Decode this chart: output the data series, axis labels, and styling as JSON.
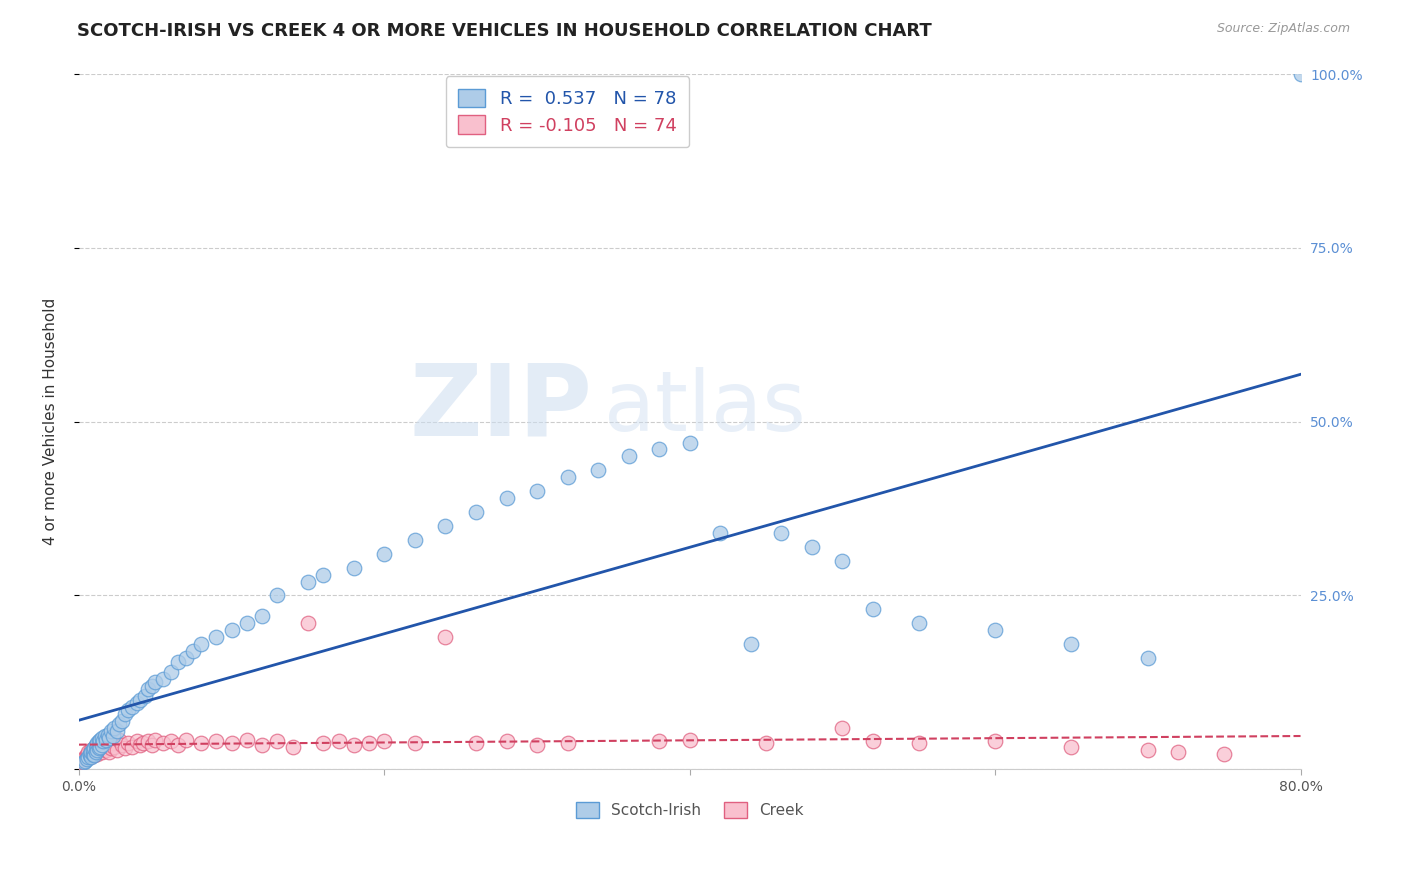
{
  "title": "SCOTCH-IRISH VS CREEK 4 OR MORE VEHICLES IN HOUSEHOLD CORRELATION CHART",
  "source": "Source: ZipAtlas.com",
  "ylabel": "4 or more Vehicles in Household",
  "xmin": 0.0,
  "xmax": 0.8,
  "ymin": 0.0,
  "ymax": 1.0,
  "ytick_positions": [
    0.0,
    0.25,
    0.5,
    0.75,
    1.0
  ],
  "ytick_labels_right": [
    "",
    "25.0%",
    "50.0%",
    "75.0%",
    "100.0%"
  ],
  "series1_name": "Scotch-Irish",
  "series1_color": "#aecce8",
  "series1_edge_color": "#5b9bd5",
  "series1_line_color": "#2255aa",
  "series1_R": 0.537,
  "series1_N": 78,
  "series2_name": "Creek",
  "series2_color": "#f9c0ce",
  "series2_edge_color": "#e06080",
  "series2_line_color": "#d04060",
  "series2_R": -0.105,
  "series2_N": 74,
  "scotch_irish_x": [
    0.003,
    0.004,
    0.005,
    0.006,
    0.007,
    0.007,
    0.008,
    0.008,
    0.009,
    0.009,
    0.01,
    0.01,
    0.011,
    0.011,
    0.012,
    0.012,
    0.013,
    0.013,
    0.014,
    0.014,
    0.015,
    0.015,
    0.016,
    0.017,
    0.018,
    0.019,
    0.02,
    0.021,
    0.022,
    0.023,
    0.025,
    0.026,
    0.028,
    0.03,
    0.032,
    0.035,
    0.038,
    0.04,
    0.043,
    0.045,
    0.048,
    0.05,
    0.055,
    0.06,
    0.065,
    0.07,
    0.075,
    0.08,
    0.09,
    0.1,
    0.11,
    0.12,
    0.13,
    0.15,
    0.16,
    0.18,
    0.2,
    0.22,
    0.24,
    0.26,
    0.28,
    0.3,
    0.32,
    0.34,
    0.36,
    0.38,
    0.4,
    0.42,
    0.44,
    0.46,
    0.48,
    0.5,
    0.52,
    0.55,
    0.6,
    0.65,
    0.7,
    0.8
  ],
  "scotch_irish_y": [
    0.01,
    0.012,
    0.015,
    0.018,
    0.02,
    0.022,
    0.018,
    0.025,
    0.022,
    0.028,
    0.02,
    0.03,
    0.025,
    0.035,
    0.028,
    0.038,
    0.03,
    0.04,
    0.032,
    0.042,
    0.035,
    0.045,
    0.04,
    0.048,
    0.042,
    0.05,
    0.045,
    0.055,
    0.048,
    0.06,
    0.055,
    0.065,
    0.07,
    0.08,
    0.085,
    0.09,
    0.095,
    0.1,
    0.105,
    0.115,
    0.12,
    0.125,
    0.13,
    0.14,
    0.155,
    0.16,
    0.17,
    0.18,
    0.19,
    0.2,
    0.21,
    0.22,
    0.25,
    0.27,
    0.28,
    0.29,
    0.31,
    0.33,
    0.35,
    0.37,
    0.39,
    0.4,
    0.42,
    0.43,
    0.45,
    0.46,
    0.47,
    0.34,
    0.18,
    0.34,
    0.32,
    0.3,
    0.23,
    0.21,
    0.2,
    0.18,
    0.16,
    1.0
  ],
  "creek_x": [
    0.002,
    0.003,
    0.004,
    0.005,
    0.006,
    0.006,
    0.007,
    0.008,
    0.008,
    0.009,
    0.01,
    0.01,
    0.011,
    0.012,
    0.012,
    0.013,
    0.014,
    0.015,
    0.015,
    0.016,
    0.017,
    0.018,
    0.019,
    0.02,
    0.02,
    0.021,
    0.022,
    0.023,
    0.025,
    0.026,
    0.028,
    0.03,
    0.032,
    0.035,
    0.038,
    0.04,
    0.042,
    0.045,
    0.048,
    0.05,
    0.055,
    0.06,
    0.065,
    0.07,
    0.08,
    0.09,
    0.1,
    0.11,
    0.12,
    0.13,
    0.14,
    0.15,
    0.16,
    0.17,
    0.18,
    0.19,
    0.2,
    0.22,
    0.24,
    0.26,
    0.28,
    0.3,
    0.32,
    0.38,
    0.4,
    0.45,
    0.5,
    0.52,
    0.55,
    0.6,
    0.65,
    0.7,
    0.72,
    0.75
  ],
  "creek_y": [
    0.01,
    0.015,
    0.018,
    0.02,
    0.022,
    0.025,
    0.018,
    0.022,
    0.028,
    0.025,
    0.02,
    0.03,
    0.025,
    0.022,
    0.035,
    0.028,
    0.032,
    0.025,
    0.038,
    0.03,
    0.035,
    0.028,
    0.04,
    0.025,
    0.035,
    0.03,
    0.038,
    0.032,
    0.028,
    0.042,
    0.035,
    0.03,
    0.038,
    0.032,
    0.04,
    0.035,
    0.038,
    0.04,
    0.035,
    0.042,
    0.038,
    0.04,
    0.035,
    0.042,
    0.038,
    0.04,
    0.038,
    0.042,
    0.035,
    0.04,
    0.032,
    0.21,
    0.038,
    0.04,
    0.035,
    0.038,
    0.04,
    0.038,
    0.19,
    0.038,
    0.04,
    0.035,
    0.038,
    0.04,
    0.042,
    0.038,
    0.06,
    0.04,
    0.038,
    0.04,
    0.032,
    0.028,
    0.025,
    0.022
  ],
  "watermark_line1": "ZIP",
  "watermark_line2": "atlas",
  "background_color": "#ffffff",
  "grid_color": "#cccccc",
  "title_fontsize": 13,
  "axis_label_fontsize": 11,
  "tick_fontsize": 10,
  "legend_fontsize": 13
}
